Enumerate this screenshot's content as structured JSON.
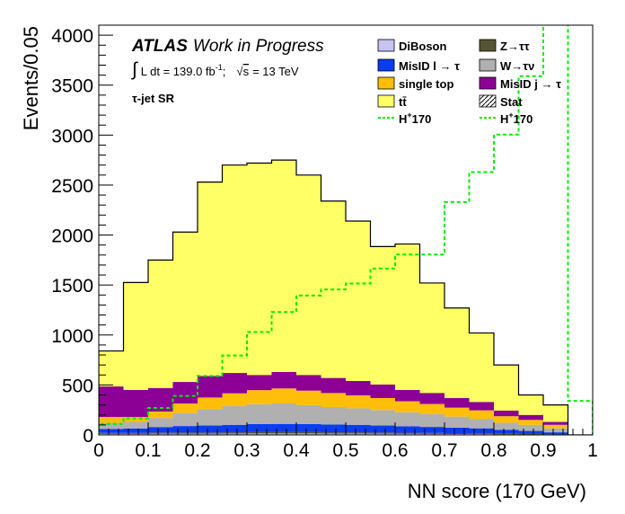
{
  "chart_data": {
    "type": "stacked-histogram",
    "xlabel": "NN score (170 GeV)",
    "ylabel": "Events/0.05",
    "xlim": [
      0,
      1
    ],
    "ylim": [
      0,
      4100
    ],
    "xticks": [
      "0",
      "0.1",
      "0.2",
      "0.3",
      "0.4",
      "0.5",
      "0.6",
      "0.7",
      "0.8",
      "0.9",
      "1"
    ],
    "yticks": [
      "0",
      "500",
      "1000",
      "1500",
      "2000",
      "2500",
      "3000",
      "3500",
      "4000"
    ],
    "bin_edges": [
      0,
      0.05,
      0.1,
      0.15,
      0.2,
      0.25,
      0.3,
      0.35,
      0.4,
      0.45,
      0.5,
      0.55,
      0.6,
      0.65,
      0.7,
      0.75,
      0.8,
      0.85,
      0.9,
      0.95,
      1.0
    ],
    "stack_order": [
      "DiBoson",
      "Z->tautau",
      "MisID l -> tau",
      "W->taunu",
      "single top",
      "MisID j -> tau",
      "ttbar"
    ],
    "series": [
      {
        "key": "DiBoson",
        "color": "#c5c5f0",
        "values": [
          10,
          10,
          12,
          12,
          12,
          13,
          14,
          14,
          14,
          13,
          13,
          12,
          11,
          10,
          9,
          8,
          6,
          5,
          3,
          0
        ]
      },
      {
        "key": "Z->tautau",
        "color": "#555533",
        "values": [
          10,
          10,
          12,
          12,
          12,
          13,
          14,
          14,
          14,
          13,
          13,
          12,
          11,
          10,
          9,
          8,
          6,
          5,
          3,
          0
        ]
      },
      {
        "key": "MisID l -> tau",
        "color": "#0a3cf0",
        "values": [
          40,
          45,
          55,
          65,
          70,
          75,
          80,
          82,
          80,
          78,
          75,
          70,
          65,
          60,
          55,
          50,
          40,
          30,
          20,
          0
        ]
      },
      {
        "key": "W->taunu",
        "color": "#b0b0b0",
        "values": [
          60,
          65,
          90,
          130,
          165,
          190,
          200,
          205,
          190,
          175,
          165,
          155,
          140,
          130,
          110,
          95,
          70,
          60,
          40,
          0
        ]
      },
      {
        "key": "single top",
        "color": "#ffbe0a",
        "values": [
          60,
          50,
          65,
          95,
          115,
          125,
          140,
          150,
          145,
          140,
          130,
          120,
          110,
          100,
          90,
          85,
          65,
          50,
          35,
          0
        ]
      },
      {
        "key": "MisID j -> tau",
        "color": "#8c0096",
        "values": [
          305,
          270,
          236,
          216,
          216,
          204,
          152,
          165,
          157,
          151,
          144,
          136,
          113,
          110,
          97,
          84,
          57,
          50,
          29,
          0
        ]
      },
      {
        "key": "ttbar",
        "color": "#ffff66",
        "values": [
          355,
          1075,
          1280,
          1500,
          1940,
          2080,
          2120,
          2120,
          2000,
          1770,
          1600,
          1380,
          1460,
          1100,
          900,
          690,
          456,
          200,
          170,
          0
        ]
      }
    ],
    "signal": {
      "key": "H+170",
      "color": "#00ee00",
      "values": [
        110,
        165,
        270,
        390,
        590,
        795,
        1030,
        1230,
        1395,
        1455,
        1515,
        1665,
        1805,
        1805,
        2330,
        2630,
        3005,
        3590,
        4150,
        340
      ]
    },
    "total_outline": [
      840,
      1525,
      1750,
      2030,
      2530,
      2700,
      2720,
      2750,
      2600,
      2340,
      2140,
      1885,
      1910,
      1520,
      1270,
      1020,
      700,
      400,
      300,
      0
    ]
  },
  "header": {
    "atlas_bold": "ATLAS",
    "atlas_rest": "Work in Progress",
    "lumi_int": "∫",
    "lumi_text": "L dt = 139.0 fb",
    "lumi_sup": "-1",
    "lumi_sep": ";",
    "sqrt": "√",
    "energy_s": "s",
    "energy_rest": "= 13 TeV",
    "region": "τ-jet SR"
  },
  "legend": {
    "col1": [
      {
        "key": "DiBoson",
        "label": "DiBoson",
        "style": "box",
        "color": "#c5c5f0"
      },
      {
        "key": "MisID l -> tau",
        "label": "MisID l → τ",
        "style": "box",
        "color": "#0a3cf0"
      },
      {
        "key": "single top",
        "label": "single top",
        "style": "box",
        "color": "#ffbe0a"
      },
      {
        "key": "ttbar",
        "label": "tt̄",
        "style": "box",
        "color": "#ffff66"
      },
      {
        "key": "H+170",
        "label_main": "H",
        "label_sup": "+",
        "label_rest": "170",
        "style": "dash",
        "color": "#00ee00"
      }
    ],
    "col2": [
      {
        "key": "Z->tautau",
        "label": "Z→ττ",
        "style": "box",
        "color": "#555533"
      },
      {
        "key": "W->taunu",
        "label": "W→τν",
        "style": "box",
        "color": "#b0b0b0"
      },
      {
        "key": "MisID j -> tau",
        "label": "MisID j → τ",
        "style": "box",
        "color": "#8c0096"
      },
      {
        "key": "Stat",
        "label": "Stat",
        "style": "hatch",
        "color": "#000000"
      },
      {
        "key": "H+170",
        "label_main": "H",
        "label_sup": "+",
        "label_rest": "170",
        "style": "dash",
        "color": "#00ee00"
      }
    ]
  }
}
